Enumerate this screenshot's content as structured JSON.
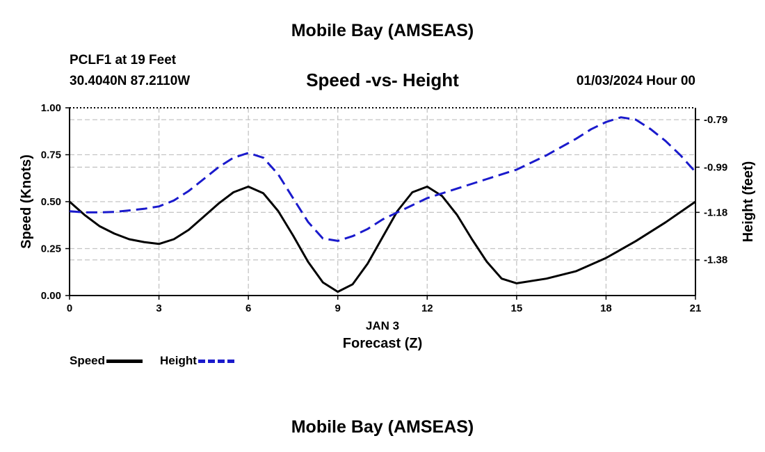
{
  "page": {
    "title_top": "Mobile Bay (AMSEAS)",
    "title_bottom": "Mobile Bay (AMSEAS)",
    "station": "PCLF1 at 19 Feet",
    "coords": "30.4040N  87.2110W",
    "chart_title": "Speed -vs- Height",
    "date_label": "01/03/2024 Hour 00"
  },
  "chart_data": {
    "type": "line",
    "title": "Speed -vs- Height",
    "xlabel": "Forecast (Z)",
    "xsublabel": "JAN 3",
    "ylabel": "Speed (Knots)",
    "y2label": "Height (feet)",
    "xlim": [
      0,
      21
    ],
    "xticks": [
      0,
      3,
      6,
      9,
      12,
      15,
      18,
      21
    ],
    "ylim": [
      0,
      1
    ],
    "yticks": [
      "0.00",
      "0.25",
      "0.50",
      "0.75",
      "1.00"
    ],
    "y2lim": [
      -1.53,
      -0.74
    ],
    "y2ticks": [
      "-0.79",
      "-0.99",
      "-1.18",
      "-1.38"
    ],
    "grid": true,
    "legend_position": "bottom-left",
    "series": [
      {
        "name": "Speed",
        "axis": "left",
        "color": "#000000",
        "dash": "solid",
        "x": [
          0,
          0.5,
          1,
          1.5,
          2,
          2.5,
          3,
          3.5,
          4,
          4.5,
          5,
          5.5,
          6,
          6.5,
          7,
          7.5,
          8,
          8.5,
          9,
          9.5,
          10,
          10.5,
          11,
          11.5,
          12,
          12.5,
          13,
          13.5,
          14,
          14.5,
          15,
          16,
          17,
          18,
          19,
          20,
          21
        ],
        "y": [
          0.5,
          0.43,
          0.37,
          0.33,
          0.3,
          0.285,
          0.275,
          0.3,
          0.35,
          0.42,
          0.49,
          0.55,
          0.58,
          0.545,
          0.45,
          0.32,
          0.18,
          0.07,
          0.02,
          0.06,
          0.17,
          0.31,
          0.45,
          0.55,
          0.58,
          0.53,
          0.43,
          0.3,
          0.18,
          0.09,
          0.065,
          0.09,
          0.13,
          0.2,
          0.29,
          0.39,
          0.5
        ]
      },
      {
        "name": "Height",
        "axis": "right",
        "color": "#1a1acc",
        "dash": "dashed",
        "x": [
          0,
          0.5,
          1,
          1.5,
          2,
          2.5,
          3,
          3.5,
          4,
          4.5,
          5,
          5.5,
          6,
          6.5,
          7,
          7.5,
          8,
          8.5,
          9,
          9.5,
          10,
          10.5,
          11,
          11.5,
          12,
          13,
          14,
          15,
          16,
          17,
          17.5,
          18,
          18.5,
          19,
          19.5,
          20,
          20.5,
          21
        ],
        "y": [
          -1.175,
          -1.18,
          -1.18,
          -1.178,
          -1.172,
          -1.165,
          -1.155,
          -1.13,
          -1.09,
          -1.04,
          -0.99,
          -0.95,
          -0.93,
          -0.95,
          -1.02,
          -1.12,
          -1.22,
          -1.29,
          -1.3,
          -1.28,
          -1.25,
          -1.21,
          -1.18,
          -1.15,
          -1.12,
          -1.08,
          -1.04,
          -1.0,
          -0.94,
          -0.87,
          -0.83,
          -0.8,
          -0.78,
          -0.79,
          -0.83,
          -0.88,
          -0.94,
          -1.01
        ]
      }
    ]
  }
}
